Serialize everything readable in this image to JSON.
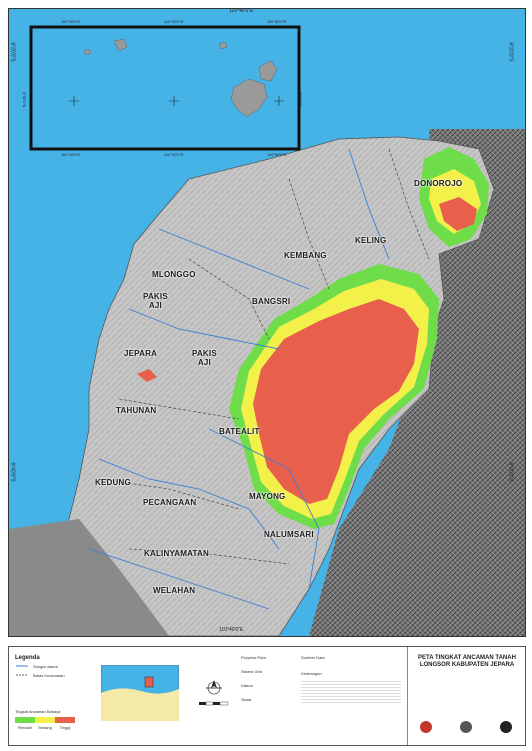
{
  "map": {
    "top_coordinate_label": "110°40'0\"E",
    "bottom_coordinate_label": "110°40'0\"E",
    "left_coordinate_top": "6°20'0\"S",
    "left_coordinate_bottom": "6°40'0\"S",
    "right_coordinate_top": "6°20'0\"S",
    "right_coordinate_bottom": "6°40'0\"S",
    "inset_top_labels": [
      "110°10'0\"E",
      "110°30'0\"E",
      "110°50'0\"E"
    ],
    "inset_bottom_labels": [
      "110°10'0\"E",
      "110°30'0\"E",
      "110°50'0\"E"
    ],
    "inset_side_label_left": "5°50'0\"S",
    "inset_side_label_right": "5°50'0\"S",
    "places": [
      {
        "id": "donorojo",
        "name": "DONOROJO"
      },
      {
        "id": "keling",
        "name": "KELING"
      },
      {
        "id": "kembang",
        "name": "KEMBANG"
      },
      {
        "id": "mlonggo",
        "name": "MLONGGO"
      },
      {
        "id": "pakis-aji-1",
        "name": "PAKIS\nAJI"
      },
      {
        "id": "bangsri",
        "name": "BANGSRI"
      },
      {
        "id": "jepara",
        "name": "JEPARA"
      },
      {
        "id": "pakis-aji-2",
        "name": "PAKIS\nAJI"
      },
      {
        "id": "tahunan",
        "name": "TAHUNAN"
      },
      {
        "id": "batealit",
        "name": "BATEALIT"
      },
      {
        "id": "kedung",
        "name": "KEDUNG"
      },
      {
        "id": "mayong",
        "name": "MAYONG"
      },
      {
        "id": "pecangaan",
        "name": "PECANGAAN"
      },
      {
        "id": "nalumsari",
        "name": "NALUMSARI"
      },
      {
        "id": "kalinyamatan",
        "name": "KALINYAMATAN"
      },
      {
        "id": "welahan",
        "name": "WELAHAN"
      }
    ],
    "colors": {
      "sea": "#45b3e6",
      "land": "#c9c9c9",
      "hazard_high": "#e8604c",
      "hazard_medium": "#f3f04a",
      "hazard_low": "#6fdc4a",
      "outside": "#6b6b6b"
    }
  },
  "legend": {
    "title": "Legenda",
    "items": [
      "Sungai utama",
      "Batas Kecamatan"
    ],
    "hazard_scale_label": "Tingkat Ancaman Bahaya",
    "hazard_classes": [
      "Rendah",
      "Sedang",
      "Tinggi"
    ],
    "map_title": "PETA TINGKAT ANCAMAN TANAH LONGSOR KABUPATEN JEPARA",
    "info_blocks": [
      "Proyeksi Peta",
      "Sistem Grid",
      "Datum",
      "Skala",
      "Sumber Data",
      "Keterangan"
    ]
  }
}
